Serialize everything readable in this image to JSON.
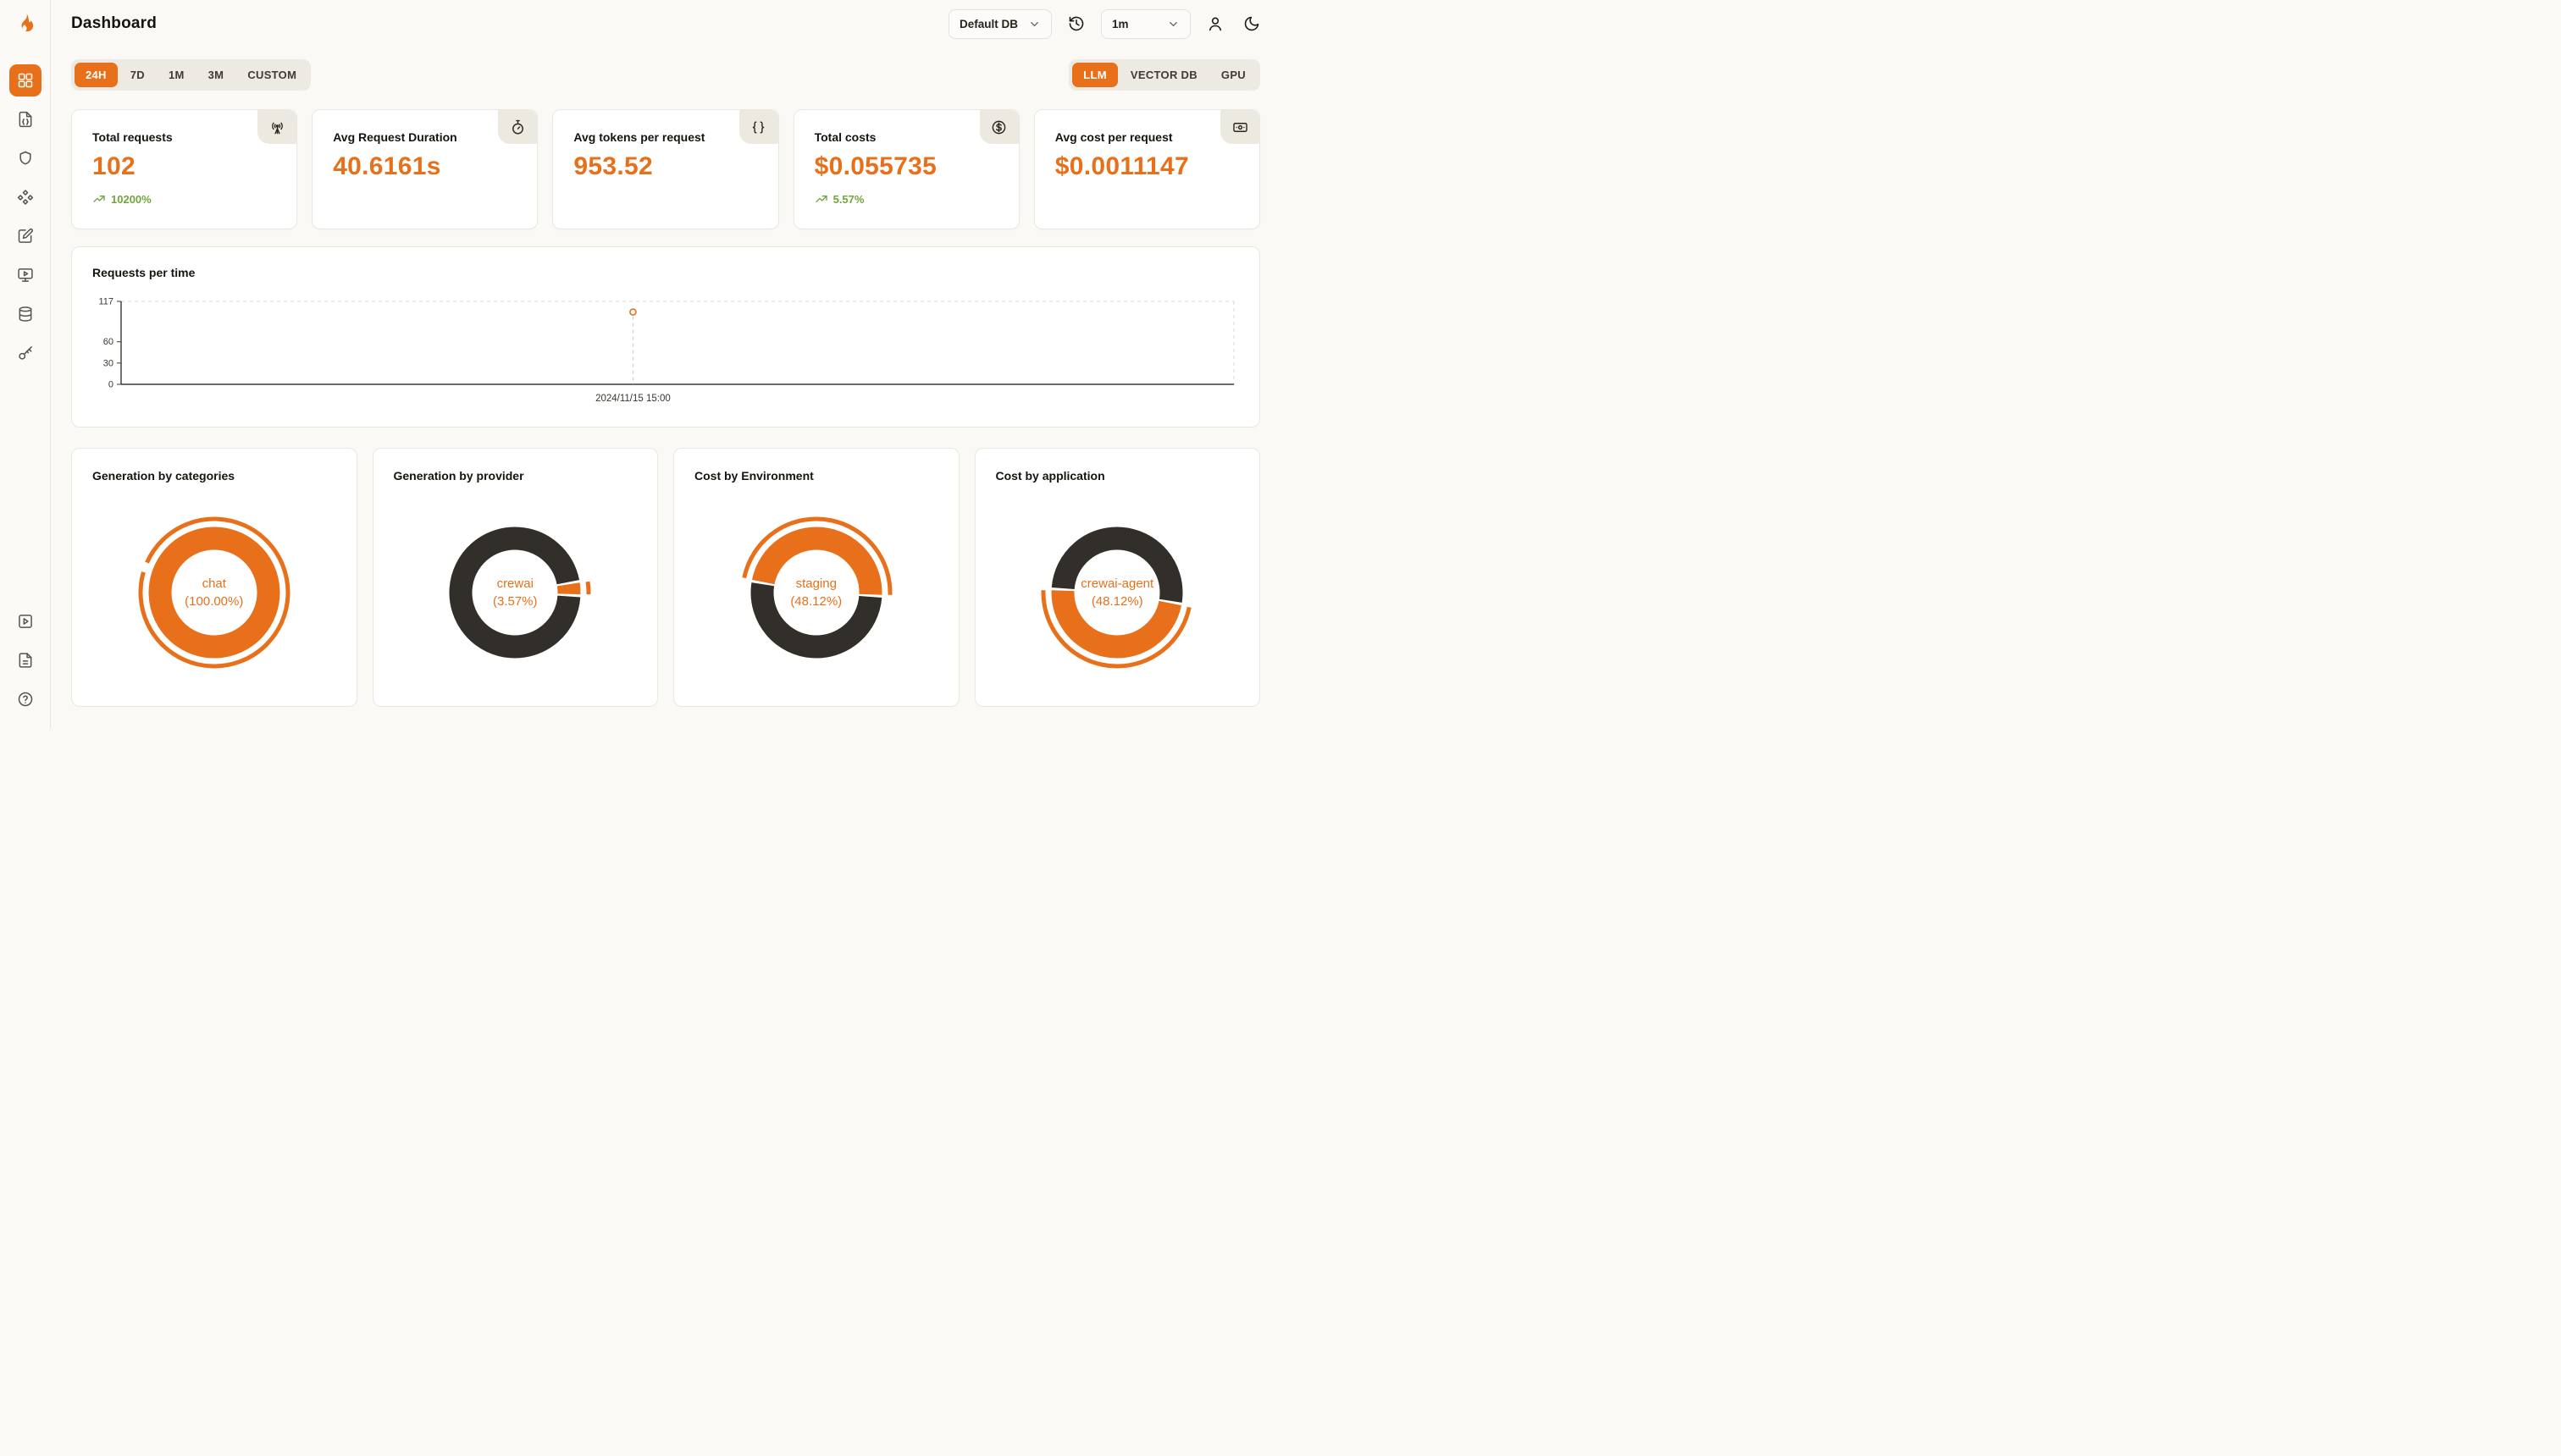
{
  "colors": {
    "accent": "#E8701A",
    "donut_dark": "#322E29",
    "positive_green": "#71A33C",
    "badge_bg": "#ECE9E1",
    "page_bg": "#FAF9F6"
  },
  "header": {
    "title": "Dashboard",
    "db_select": "Default DB",
    "interval_select": "1m"
  },
  "sidebar": {
    "logo_icon": "flame-logo",
    "items": [
      {
        "icon": "dashboard-grid-icon",
        "active": true
      },
      {
        "icon": "file-json-icon"
      },
      {
        "icon": "shield-icon"
      },
      {
        "icon": "component-diamonds-icon"
      },
      {
        "icon": "square-pen-icon"
      },
      {
        "icon": "monitor-play-icon"
      },
      {
        "icon": "database-icon"
      },
      {
        "icon": "key-icon"
      }
    ],
    "bottom_items": [
      {
        "icon": "square-play-icon"
      },
      {
        "icon": "file-text-icon"
      },
      {
        "icon": "help-circle-icon"
      }
    ]
  },
  "tabs": {
    "time": [
      {
        "label": "24H",
        "active": true
      },
      {
        "label": "7D",
        "active": false
      },
      {
        "label": "1M",
        "active": false
      },
      {
        "label": "3M",
        "active": false
      },
      {
        "label": "CUSTOM",
        "active": false
      }
    ],
    "source": [
      {
        "label": "LLM",
        "active": true
      },
      {
        "label": "VECTOR DB",
        "active": false
      },
      {
        "label": "GPU",
        "active": false
      }
    ]
  },
  "stats": [
    {
      "label": "Total requests",
      "value": "102",
      "delta": "10200%",
      "icon": "radio-tower-icon"
    },
    {
      "label": "Avg Request Duration",
      "value": "40.6161s",
      "delta": "",
      "icon": "timer-icon"
    },
    {
      "label": "Avg tokens per request",
      "value": "953.52",
      "delta": "",
      "icon": "braces-icon"
    },
    {
      "label": "Total costs",
      "value": "$0.055735",
      "delta": "5.57%",
      "icon": "circle-dollar-icon"
    },
    {
      "label": "Avg cost per request",
      "value": "$0.0011147",
      "delta": "",
      "icon": "banknote-icon"
    }
  ],
  "chart_data": [
    {
      "type": "line",
      "title": "Requests per time",
      "x": [
        "2024/11/15 15:00"
      ],
      "series": [
        {
          "name": "requests",
          "values": [
            102
          ]
        }
      ],
      "ylim": [
        0,
        117
      ],
      "yticks": [
        0,
        30,
        60,
        117
      ],
      "xlabel": "",
      "ylabel": "",
      "grid": false,
      "point_x_fraction": 0.46,
      "style": "single point with dashed vertical guide, dashed top/right plot border"
    },
    {
      "type": "pie",
      "title": "Generation by categories",
      "center_label": "chat",
      "center_pct": "(100.00%)",
      "rotation": 200,
      "slices": [
        {
          "name": "chat",
          "value": 100.0,
          "color": "#E8701A",
          "active": true
        }
      ]
    },
    {
      "type": "pie",
      "title": "Generation by provider",
      "center_label": "crewai",
      "center_pct": "(3.57%)",
      "rotation": -10,
      "slices": [
        {
          "name": "crewai",
          "value": 3.57,
          "color": "#E8701A",
          "active": true
        },
        {
          "name": "other",
          "value": 96.43,
          "color": "#322E29",
          "active": false
        }
      ]
    },
    {
      "type": "pie",
      "title": "Cost by Environment",
      "center_label": "staging",
      "center_pct": "(48.12%)",
      "rotation": 190,
      "slices": [
        {
          "name": "staging",
          "value": 48.12,
          "color": "#E8701A",
          "active": true
        },
        {
          "name": "other",
          "value": 51.88,
          "color": "#322E29",
          "active": false
        }
      ]
    },
    {
      "type": "pie",
      "title": "Cost by application",
      "center_label": "crewai-agent",
      "center_pct": "(48.12%)",
      "rotation": 10,
      "slices": [
        {
          "name": "crewai-agent",
          "value": 48.12,
          "color": "#E8701A",
          "active": true
        },
        {
          "name": "other",
          "value": 51.88,
          "color": "#322E29",
          "active": false
        }
      ]
    }
  ]
}
